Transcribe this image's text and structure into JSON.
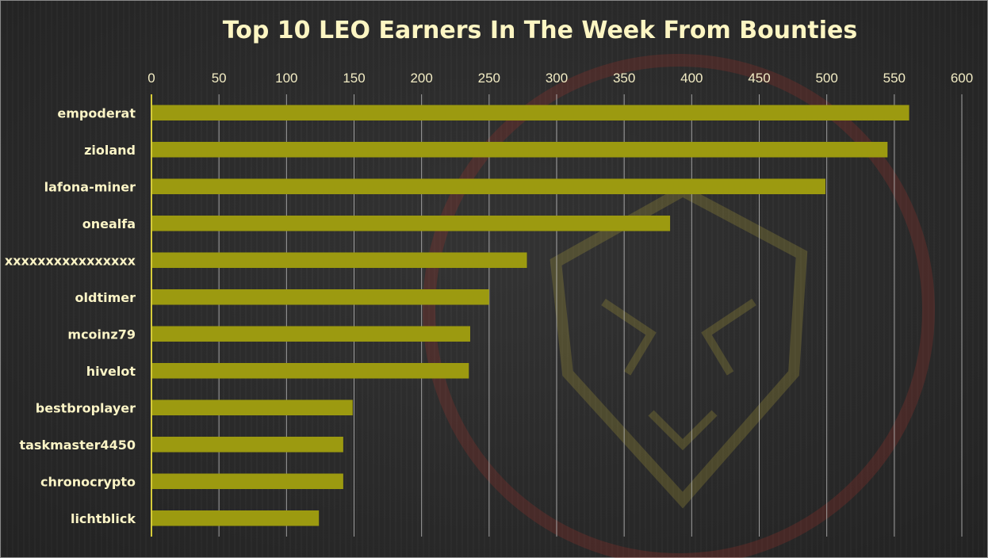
{
  "chart_data": {
    "type": "bar",
    "orientation": "horizontal",
    "title": "Top 10 LEO Earners In The Week From Bounties",
    "categories": [
      "empoderat",
      "zioland",
      "lafona-miner",
      "onealfa",
      "xxxxxxxxxxxxxxxx",
      "oldtimer",
      "mcoinz79",
      "hivelot",
      "bestbroplayer",
      "taskmaster4450",
      "chronocrypto",
      "lichtblick"
    ],
    "values": [
      561,
      545,
      499,
      384,
      278,
      250,
      236,
      235,
      149,
      142,
      142,
      124
    ],
    "xlim": [
      0,
      600
    ],
    "x_ticks": [
      0,
      50,
      100,
      150,
      200,
      250,
      300,
      350,
      400,
      450,
      500,
      550,
      600
    ],
    "x_axis_position": "top",
    "grid": "vertical",
    "legend": "none",
    "colors": {
      "bar": "#9c9a10",
      "grid": "#c8c8c8",
      "axis": "#d6cc3a",
      "text": "#fbf4c6"
    }
  }
}
